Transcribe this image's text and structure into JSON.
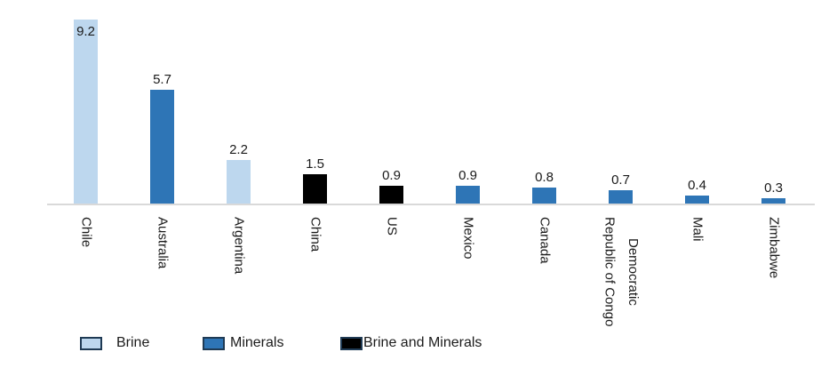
{
  "chart": {
    "background_color": "#ffffff",
    "axis_line_color": "#d9d9d9",
    "text_color": "#1a1a1a",
    "swatch_border_color": "#1f3a54"
  },
  "chart_data": {
    "type": "bar",
    "title": "",
    "xlabel": "",
    "ylabel": "",
    "ylim": [
      0,
      9.6
    ],
    "gridlines": false,
    "data_labels": "outside-end",
    "category_label_rotation": "vertical-top-to-bottom",
    "legend_position": "bottom-left",
    "categories": [
      "Chile",
      "Australia",
      "Argentina",
      "China",
      "US",
      "Mexico",
      "Canada",
      "Democratic\nRepublic of Congo",
      "Mali",
      "Zimbabwe"
    ],
    "values": [
      9.2,
      5.7,
      2.2,
      1.5,
      0.9,
      0.9,
      0.8,
      0.7,
      0.4,
      0.3
    ],
    "value_labels": [
      "9.2",
      "5.7",
      "2.2",
      "1.5",
      "0.9",
      "0.9",
      "0.8",
      "0.7",
      "0.4",
      "0.3"
    ],
    "bar_series": [
      "Brine",
      "Minerals",
      "Brine",
      "Brine and Minerals",
      "Brine and Minerals",
      "Minerals",
      "Minerals",
      "Minerals",
      "Minerals",
      "Minerals"
    ],
    "series_colors": {
      "Brine": "#bdd7ee",
      "Minerals": "#2e75b6",
      "Brine and Minerals": "#000000"
    },
    "legend": {
      "entries": [
        {
          "label": "Brine",
          "color": "#bdd7ee"
        },
        {
          "label": "Minerals",
          "color": "#2e75b6"
        },
        {
          "label": "Brine and Minerals",
          "color": "#000000"
        }
      ]
    }
  }
}
